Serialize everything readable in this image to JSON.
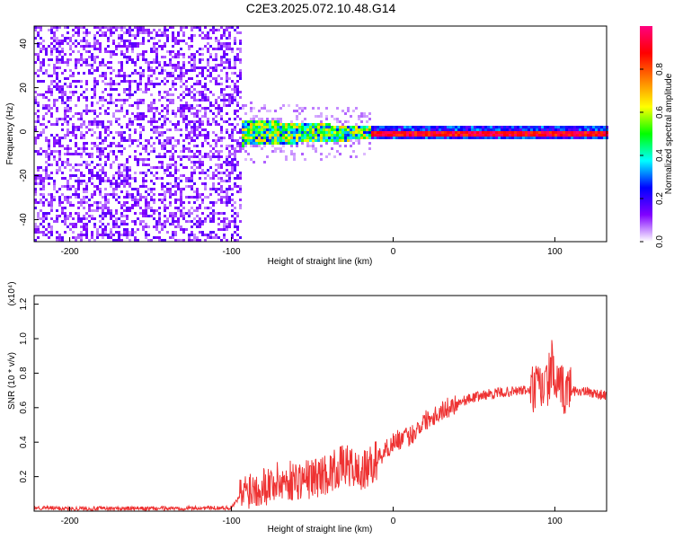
{
  "title": "C2E3.2025.072.10.48.G14",
  "chart_data": [
    {
      "type": "heatmap",
      "xlabel": "Height of straight line (km)",
      "ylabel": "Frequency (Hz)",
      "xlim": [
        -222,
        132
      ],
      "ylim": [
        -50,
        48
      ],
      "x_ticks": [
        -200,
        -100,
        0,
        100
      ],
      "y_ticks": [
        -40,
        -20,
        0,
        20,
        40
      ],
      "colorbar": {
        "label": "Normalized spectral amplitude",
        "range": [
          0,
          1
        ],
        "ticks": [
          0.0,
          0.2,
          0.4,
          0.6,
          0.8
        ],
        "tick_labels": [
          "0.0",
          "0.2",
          "0.4",
          "0.6",
          "0.8"
        ],
        "colors": [
          "#ffffff",
          "#8000ff",
          "#0000ff",
          "#00ffff",
          "#00ff00",
          "#ffff00",
          "#ff8000",
          "#ff0000",
          "#ff0080"
        ]
      },
      "regions": [
        {
          "x_range": [
            -222,
            -95
          ],
          "freq_range": [
            -50,
            48
          ],
          "amplitude": 0.1,
          "pattern": "scattered noise"
        },
        {
          "x_range": [
            -95,
            -15
          ],
          "freq_range": [
            -6,
            6
          ],
          "amplitude": 0.45,
          "pattern": "narrowing band"
        },
        {
          "x_range": [
            -15,
            132
          ],
          "freq_range": [
            -1,
            1
          ],
          "amplitude": 0.9,
          "pattern": "narrow line at 0 Hz"
        }
      ]
    },
    {
      "type": "line",
      "xlabel": "Height of straight line (km)",
      "ylabel": "SNR (10 * v/v)",
      "y_scale_label": "(x10⁴)",
      "xlim": [
        -222,
        132
      ],
      "ylim": [
        0,
        1.25
      ],
      "x_ticks": [
        -200,
        -100,
        0,
        100
      ],
      "y_ticks": [
        0.2,
        0.4,
        0.6,
        0.8,
        1.0,
        1.2
      ],
      "y_tick_labels": [
        "0.2",
        "0.4",
        "0.6",
        "0.8",
        "1.0",
        "1.2"
      ],
      "color": "#ee3333",
      "x": [
        -222,
        -200,
        -150,
        -100,
        -95,
        -90,
        -80,
        -70,
        -60,
        -50,
        -40,
        -30,
        -25,
        -20,
        -15,
        -10,
        -5,
        0,
        5,
        10,
        15,
        20,
        30,
        40,
        50,
        60,
        70,
        80,
        85,
        90,
        95,
        98,
        100,
        102,
        105,
        110,
        120,
        132
      ],
      "y": [
        0.02,
        0.015,
        0.015,
        0.02,
        0.08,
        0.13,
        0.15,
        0.17,
        0.18,
        0.19,
        0.22,
        0.27,
        0.25,
        0.22,
        0.25,
        0.3,
        0.35,
        0.4,
        0.42,
        0.43,
        0.48,
        0.53,
        0.58,
        0.63,
        0.66,
        0.68,
        0.69,
        0.7,
        0.7,
        0.71,
        0.72,
        0.85,
        0.74,
        0.7,
        0.7,
        0.7,
        0.69,
        0.67
      ]
    }
  ]
}
